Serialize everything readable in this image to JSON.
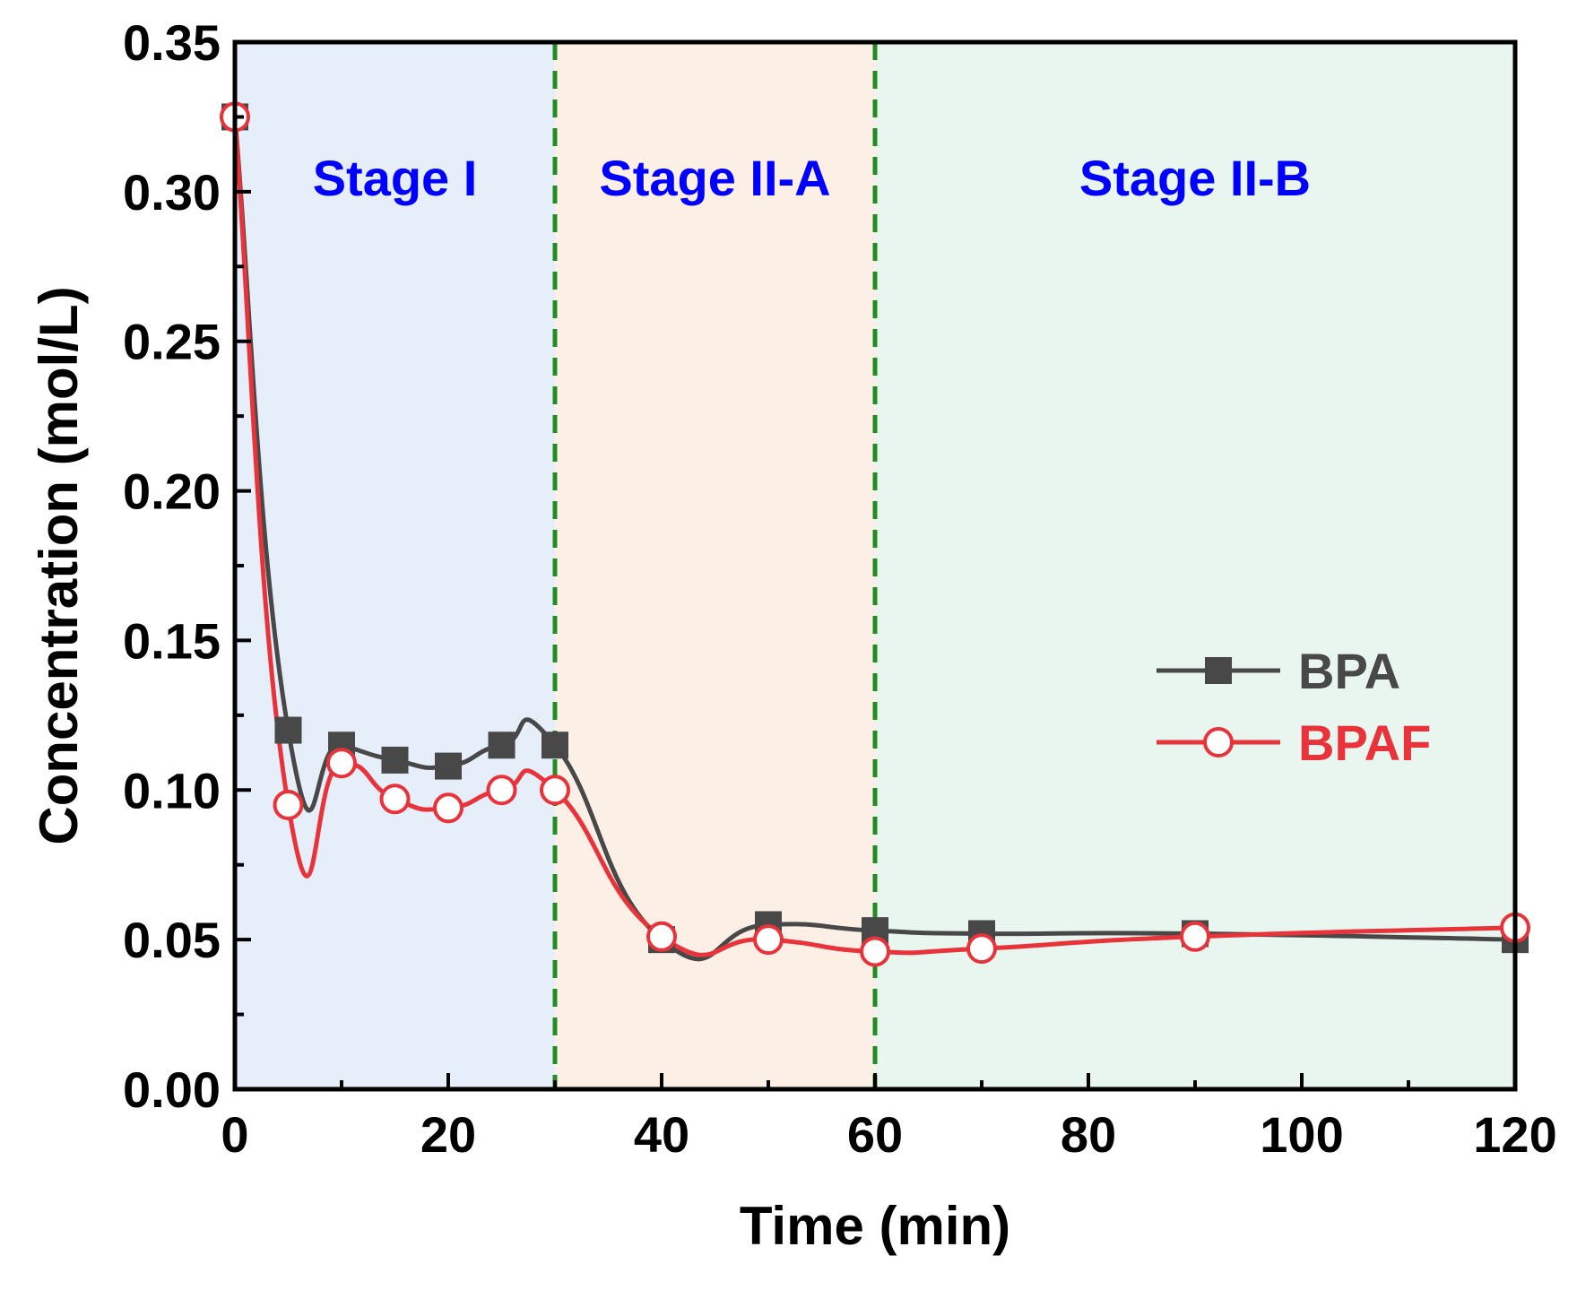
{
  "chart_data": {
    "type": "line",
    "title": "",
    "xlabel": "Time (min)",
    "ylabel": "Concentration (mol/L)",
    "xlim": [
      0,
      120
    ],
    "ylim": [
      0,
      0.35
    ],
    "x_ticks": [
      0,
      20,
      40,
      60,
      80,
      100,
      120
    ],
    "x_tick_labels": [
      "0",
      "20",
      "40",
      "60",
      "80",
      "100",
      "120"
    ],
    "y_ticks": [
      0,
      0.05,
      0.1,
      0.15,
      0.2,
      0.25,
      0.3,
      0.35
    ],
    "y_tick_labels": [
      "0.00",
      "0.05",
      "0.10",
      "0.15",
      "0.20",
      "0.25",
      "0.30",
      "0.35"
    ],
    "grid": false,
    "legend_position": "right-middle",
    "stages": [
      {
        "label": "Stage I",
        "x_start": 0,
        "x_end": 30,
        "color": "#e6eefa"
      },
      {
        "label": "Stage II-A",
        "x_start": 30,
        "x_end": 60,
        "color": "#fcefe6"
      },
      {
        "label": "Stage II-B",
        "x_start": 60,
        "x_end": 120,
        "color": "#e8f6ef"
      }
    ],
    "stage_label_color": "#0000ff",
    "boundary_lines": [
      30,
      60
    ],
    "boundary_color": "#228b22",
    "series": [
      {
        "name": "BPA",
        "color": "#484848",
        "marker": "square-filled",
        "x": [
          0,
          5,
          10,
          15,
          20,
          25,
          30,
          40,
          50,
          60,
          70,
          90,
          120
        ],
        "values": [
          0.325,
          0.12,
          0.115,
          0.11,
          0.108,
          0.115,
          0.115,
          0.05,
          0.055,
          0.053,
          0.052,
          0.052,
          0.05
        ]
      },
      {
        "name": "BPAF",
        "color": "#e8333a",
        "marker": "circle-open",
        "x": [
          0,
          5,
          10,
          15,
          20,
          25,
          30,
          40,
          50,
          60,
          70,
          90,
          120
        ],
        "values": [
          0.325,
          0.095,
          0.109,
          0.097,
          0.094,
          0.1,
          0.1,
          0.051,
          0.05,
          0.046,
          0.047,
          0.051,
          0.054
        ]
      }
    ]
  }
}
